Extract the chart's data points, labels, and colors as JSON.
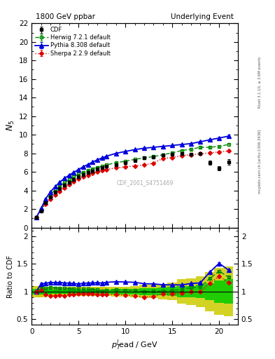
{
  "title_left": "1800 GeV ppbar",
  "title_right": "Underlying Event",
  "ylabel_main": "$N_5$",
  "ylabel_ratio": "Ratio to CDF",
  "xlabel": "$p_T^l\\!$ead / GeV",
  "watermark": "CDF_2001_S4751469",
  "right_label": "mcplots.cern.ch [arXiv:1306.3436]",
  "right_label2": "Rivet 3.1.10, ≥ 3.6M events",
  "cdf_x": [
    0.5,
    1.0,
    1.5,
    2.0,
    2.5,
    3.0,
    3.5,
    4.0,
    4.5,
    5.0,
    5.5,
    6.0,
    6.5,
    7.0,
    7.5,
    8.0,
    9.0,
    10.0,
    11.0,
    12.0,
    13.0,
    14.0,
    15.0,
    16.0,
    17.0,
    18.0,
    19.0,
    20.0,
    21.0
  ],
  "cdf_y": [
    1.1,
    1.8,
    2.7,
    3.3,
    3.8,
    4.2,
    4.6,
    4.9,
    5.2,
    5.5,
    5.7,
    5.9,
    6.1,
    6.3,
    6.5,
    6.6,
    6.8,
    7.0,
    7.2,
    7.5,
    7.6,
    7.8,
    7.9,
    8.0,
    7.9,
    8.0,
    7.0,
    6.4,
    7.1
  ],
  "cdf_yerr": [
    0.08,
    0.08,
    0.08,
    0.08,
    0.08,
    0.08,
    0.08,
    0.08,
    0.08,
    0.08,
    0.08,
    0.08,
    0.08,
    0.08,
    0.08,
    0.08,
    0.08,
    0.08,
    0.08,
    0.08,
    0.08,
    0.1,
    0.12,
    0.12,
    0.15,
    0.15,
    0.2,
    0.25,
    0.3
  ],
  "herwig_x": [
    0.5,
    1.0,
    1.5,
    2.0,
    2.5,
    3.0,
    3.5,
    4.0,
    4.5,
    5.0,
    5.5,
    6.0,
    6.5,
    7.0,
    7.5,
    8.0,
    9.0,
    10.0,
    11.0,
    12.0,
    13.0,
    14.0,
    15.0,
    16.0,
    17.0,
    18.0,
    19.0,
    20.0,
    21.0
  ],
  "herwig_y": [
    1.1,
    1.9,
    2.85,
    3.55,
    4.05,
    4.45,
    4.85,
    5.15,
    5.45,
    5.75,
    5.95,
    6.15,
    6.35,
    6.5,
    6.6,
    6.75,
    7.0,
    7.15,
    7.35,
    7.5,
    7.65,
    7.85,
    8.05,
    8.3,
    8.45,
    8.65,
    8.65,
    8.75,
    8.95
  ],
  "herwig_yerr": [
    0.03,
    0.03,
    0.03,
    0.03,
    0.03,
    0.03,
    0.03,
    0.03,
    0.03,
    0.03,
    0.03,
    0.03,
    0.03,
    0.03,
    0.03,
    0.03,
    0.03,
    0.03,
    0.04,
    0.04,
    0.04,
    0.05,
    0.06,
    0.07,
    0.07,
    0.08,
    0.09,
    0.1,
    0.12
  ],
  "pythia_x": [
    0.5,
    1.0,
    1.5,
    2.0,
    2.5,
    3.0,
    3.5,
    4.0,
    4.5,
    5.0,
    5.5,
    6.0,
    6.5,
    7.0,
    7.5,
    8.0,
    9.0,
    10.0,
    11.0,
    12.0,
    13.0,
    14.0,
    15.0,
    16.0,
    17.0,
    18.0,
    19.0,
    20.0,
    21.0
  ],
  "pythia_y": [
    1.1,
    2.05,
    3.1,
    3.85,
    4.4,
    4.9,
    5.3,
    5.65,
    5.95,
    6.25,
    6.55,
    6.8,
    7.05,
    7.3,
    7.5,
    7.7,
    8.0,
    8.2,
    8.4,
    8.55,
    8.65,
    8.75,
    8.85,
    8.95,
    9.05,
    9.25,
    9.45,
    9.65,
    9.85
  ],
  "pythia_yerr": [
    0.03,
    0.03,
    0.03,
    0.03,
    0.03,
    0.03,
    0.03,
    0.03,
    0.03,
    0.03,
    0.03,
    0.03,
    0.03,
    0.03,
    0.03,
    0.03,
    0.03,
    0.03,
    0.04,
    0.04,
    0.04,
    0.05,
    0.06,
    0.07,
    0.07,
    0.08,
    0.09,
    0.1,
    0.13
  ],
  "sherpa_x": [
    0.5,
    1.0,
    1.5,
    2.0,
    2.5,
    3.0,
    3.5,
    4.0,
    4.5,
    5.0,
    5.5,
    6.0,
    6.5,
    7.0,
    7.5,
    8.0,
    9.0,
    10.0,
    11.0,
    12.0,
    13.0,
    14.0,
    15.0,
    16.0,
    17.0,
    18.0,
    19.0,
    20.0,
    21.0
  ],
  "sherpa_y": [
    1.1,
    1.85,
    2.55,
    3.05,
    3.5,
    3.9,
    4.25,
    4.65,
    4.95,
    5.25,
    5.45,
    5.65,
    5.85,
    6.0,
    6.15,
    6.25,
    6.45,
    6.55,
    6.65,
    6.75,
    6.95,
    7.45,
    7.55,
    7.75,
    7.85,
    7.95,
    8.05,
    8.15,
    8.25
  ],
  "sherpa_yerr": [
    0.03,
    0.03,
    0.03,
    0.03,
    0.03,
    0.03,
    0.03,
    0.03,
    0.03,
    0.03,
    0.03,
    0.03,
    0.03,
    0.03,
    0.03,
    0.03,
    0.03,
    0.03,
    0.04,
    0.04,
    0.04,
    0.05,
    0.06,
    0.07,
    0.07,
    0.08,
    0.09,
    0.1,
    0.12
  ],
  "cdf_color": "#000000",
  "herwig_color": "#008800",
  "pythia_color": "#0000dd",
  "sherpa_color": "#dd0000",
  "xmin": 0,
  "xmax": 22,
  "ymin": 0,
  "ymax": 22,
  "ratio_ymin": 0.4,
  "ratio_ymax": 2.15,
  "ratio_yticks": [
    0.5,
    1.0,
    1.5,
    2.0
  ],
  "ratio_yticklabels": [
    "0.5",
    "1",
    "1.5",
    "2"
  ],
  "cdf_band_inner_color": "#00cc00",
  "cdf_band_outer_color": "#cccc00",
  "cdf_band_x": [
    0.5,
    1.0,
    1.5,
    2.0,
    2.5,
    3.0,
    3.5,
    4.0,
    4.5,
    5.0,
    5.5,
    6.0,
    6.5,
    7.0,
    7.5,
    8.0,
    9.0,
    10.0,
    11.0,
    12.0,
    13.0,
    14.0,
    15.0,
    16.0,
    17.0,
    18.0,
    19.0,
    20.0,
    21.0
  ],
  "cdf_band_bw": [
    0.5,
    0.5,
    0.5,
    0.5,
    0.5,
    0.5,
    0.5,
    0.5,
    0.5,
    0.5,
    0.5,
    0.5,
    0.5,
    0.5,
    0.5,
    0.5,
    0.5,
    0.5,
    0.5,
    0.5,
    0.5,
    0.5,
    0.5,
    0.5,
    0.5,
    0.5,
    0.5,
    0.5,
    0.5
  ],
  "cdf_band_inner": [
    0.05,
    0.05,
    0.05,
    0.04,
    0.04,
    0.04,
    0.04,
    0.04,
    0.04,
    0.04,
    0.04,
    0.04,
    0.04,
    0.04,
    0.04,
    0.04,
    0.05,
    0.05,
    0.05,
    0.06,
    0.06,
    0.07,
    0.08,
    0.1,
    0.1,
    0.12,
    0.15,
    0.2,
    0.22
  ],
  "cdf_band_outer": [
    0.1,
    0.1,
    0.09,
    0.08,
    0.08,
    0.08,
    0.08,
    0.08,
    0.08,
    0.08,
    0.08,
    0.08,
    0.08,
    0.08,
    0.08,
    0.08,
    0.09,
    0.09,
    0.1,
    0.12,
    0.12,
    0.14,
    0.16,
    0.22,
    0.24,
    0.28,
    0.35,
    0.42,
    0.45
  ]
}
